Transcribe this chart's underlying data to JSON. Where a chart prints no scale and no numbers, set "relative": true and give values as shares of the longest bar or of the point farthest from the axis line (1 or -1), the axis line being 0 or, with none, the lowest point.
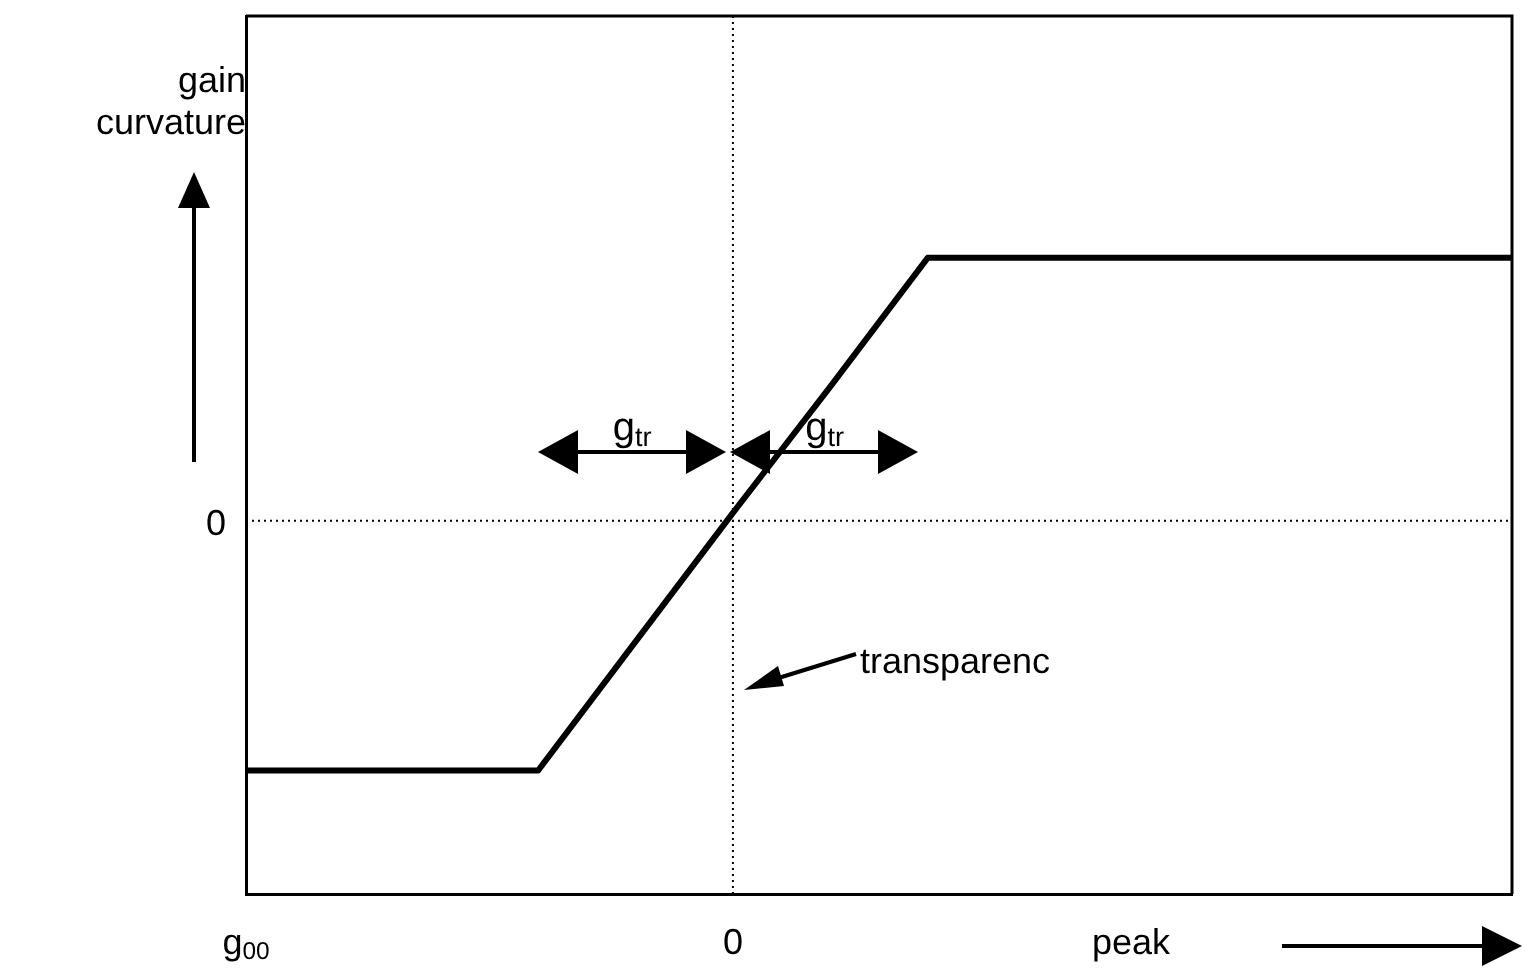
{
  "chart_data": {
    "type": "line",
    "relative": true,
    "xlabel": "peak",
    "ylabel": "gain curvature",
    "categories": [
      "g$_{00}$",
      null,
      null,
      null,
      null,
      "0",
      null,
      null,
      null,
      null,
      null,
      null,
      null,
      null
    ],
    "series": [
      {
        "color": "#000000",
        "values": [
          -0.95,
          -0.95,
          -0.95,
          -0.95,
          -0.46,
          0.03,
          0.51,
          1,
          1,
          1,
          1,
          1,
          1,
          1
        ]
      }
    ],
    "ref_lines": [
      {
        "axis": "y",
        "value": 0,
        "label": "0",
        "color": "#000000",
        "line_style": "dotted"
      },
      {
        "axis": "x",
        "value": "0",
        "color": "#000000",
        "line_style": "dotted"
      }
    ],
    "annotations": [
      "g$_{tr}$",
      "g$_{tr}$",
      "transparenc"
    ],
    "grid": false,
    "legend": false,
    "marker": "none",
    "line_style": "solid"
  }
}
